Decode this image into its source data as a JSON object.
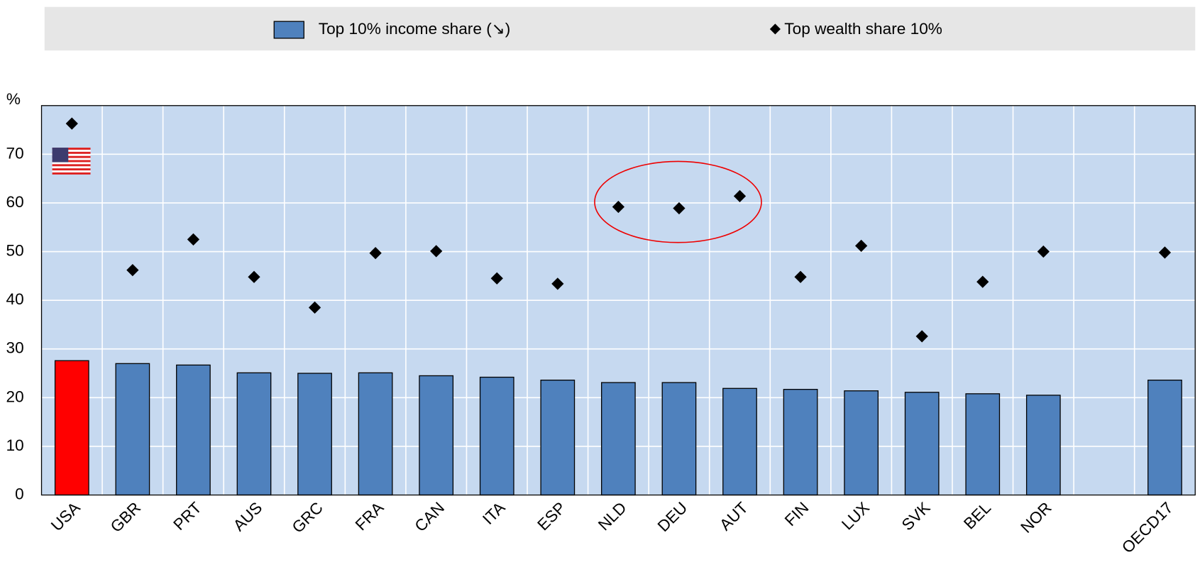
{
  "chart_data": {
    "type": "bar_dot",
    "y_label": "%",
    "categories": [
      "USA",
      "GBR",
      "PRT",
      "AUS",
      "GRC",
      "FRA",
      "CAN",
      "ITA",
      "ESP",
      "NLD",
      "DEU",
      "AUT",
      "FIN",
      "LUX",
      "SVK",
      "BEL",
      "NOR",
      null,
      "OECD17"
    ],
    "series": [
      {
        "name": "Top 10% income share (↘)",
        "kind": "bar",
        "color": "#4f81bd",
        "highlight_index": 0,
        "highlight_color": "#ff0000",
        "values": [
          27.6,
          27.0,
          26.7,
          25.1,
          25.0,
          25.1,
          24.5,
          24.2,
          23.6,
          23.1,
          23.1,
          21.9,
          21.7,
          21.4,
          21.1,
          20.8,
          20.5,
          null,
          23.6
        ]
      },
      {
        "name": "Top wealth share 10%",
        "kind": "diamond",
        "color": "#000000",
        "values": [
          76.3,
          46.2,
          52.5,
          44.8,
          38.5,
          49.7,
          50.1,
          44.5,
          43.4,
          59.2,
          58.9,
          61.4,
          44.8,
          51.2,
          32.6,
          43.8,
          50.0,
          null,
          49.8
        ]
      }
    ],
    "ylim": [
      0,
      80
    ],
    "yticks": [
      0,
      10,
      20,
      30,
      40,
      50,
      60,
      70
    ],
    "grid": true
  }
}
